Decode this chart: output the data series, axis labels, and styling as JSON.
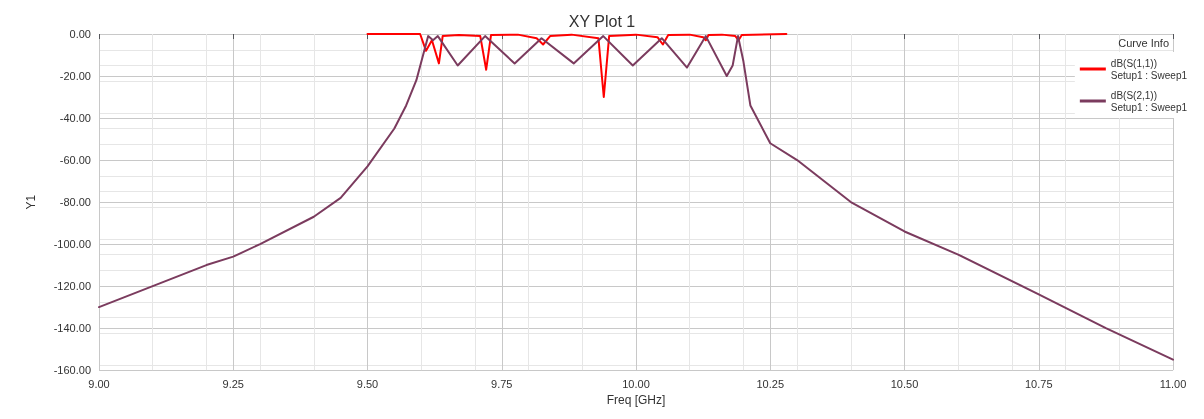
{
  "chart_data": {
    "type": "line",
    "title": "XY Plot 1",
    "xlabel": "Freq [GHz]",
    "ylabel": "Y1",
    "legend_title": "Curve Info",
    "xlim": [
      9,
      11
    ],
    "ylim": [
      -160,
      0
    ],
    "xticks": [
      {
        "value": 9,
        "label": "9.00"
      },
      {
        "value": 9.25,
        "label": "9.25"
      },
      {
        "value": 9.5,
        "label": "9.50"
      },
      {
        "value": 9.75,
        "label": "9.75"
      },
      {
        "value": 10,
        "label": "10.00"
      },
      {
        "value": 10.25,
        "label": "10.25"
      },
      {
        "value": 10.5,
        "label": "10.50"
      },
      {
        "value": 10.75,
        "label": "10.75"
      },
      {
        "value": 11,
        "label": "11.00"
      }
    ],
    "yticks": [
      {
        "value": 0,
        "label": "0.00"
      },
      {
        "value": -20,
        "label": "-20.00"
      },
      {
        "value": -40,
        "label": "-40.00"
      },
      {
        "value": -60,
        "label": "-60.00"
      },
      {
        "value": -80,
        "label": "-80.00"
      },
      {
        "value": -100,
        "label": "-100.00"
      },
      {
        "value": -120,
        "label": "-120.00"
      },
      {
        "value": -140,
        "label": "-140.00"
      },
      {
        "value": -160,
        "label": "-160.00"
      }
    ],
    "grid": true,
    "legend": "top right",
    "marker": "none",
    "line_style": "solid",
    "series": [
      {
        "name": "dB(S(1,1))\nSetup1 : Sweep1",
        "color": "#ff0000",
        "x": [
          9.5,
          9.598,
          9.609,
          9.62,
          9.633,
          9.64,
          9.67,
          9.71,
          9.721,
          9.73,
          9.78,
          9.815,
          9.827,
          9.84,
          9.88,
          9.93,
          9.94,
          9.95,
          10.0,
          10.04,
          10.05,
          10.06,
          10.1,
          10.125,
          10.13,
          10.135,
          10.16,
          10.185,
          10.191,
          10.197,
          10.28
        ],
        "values": [
          0,
          0,
          -8,
          -3,
          -14,
          -1,
          -0.5,
          -1,
          -17,
          -0.5,
          -0.3,
          -2,
          -5,
          -1,
          -0.3,
          -2,
          -30,
          -1,
          -0.3,
          -1.5,
          -5,
          -0.5,
          -0.3,
          -1.5,
          -3,
          -0.5,
          -0.3,
          -1,
          -3,
          -0.5,
          0
        ]
      },
      {
        "name": "dB(S(2,1))\nSetup1 : Sweep1",
        "color": "#7b3b5e",
        "x": [
          9.0,
          9.1,
          9.2,
          9.25,
          9.3,
          9.4,
          9.45,
          9.5,
          9.55,
          9.572,
          9.591,
          9.613,
          9.622,
          9.631,
          9.668,
          9.719,
          9.774,
          9.824,
          9.884,
          9.939,
          9.994,
          10.048,
          10.095,
          10.13,
          10.169,
          10.18,
          10.19,
          10.2,
          10.213,
          10.25,
          10.3,
          10.4,
          10.5,
          10.6,
          10.75,
          10.875,
          11.0
        ],
        "values": [
          -130,
          -120,
          -110,
          -106,
          -100,
          -87,
          -78,
          -63,
          -45,
          -34,
          -22,
          -1,
          -3,
          -1,
          -15,
          -1,
          -14,
          -2,
          -14,
          -1,
          -15,
          -2,
          -16,
          -1,
          -20,
          -15,
          -1,
          -13,
          -34,
          -52,
          -60,
          -80,
          -94,
          -105,
          -124,
          -140,
          -155
        ]
      }
    ]
  }
}
